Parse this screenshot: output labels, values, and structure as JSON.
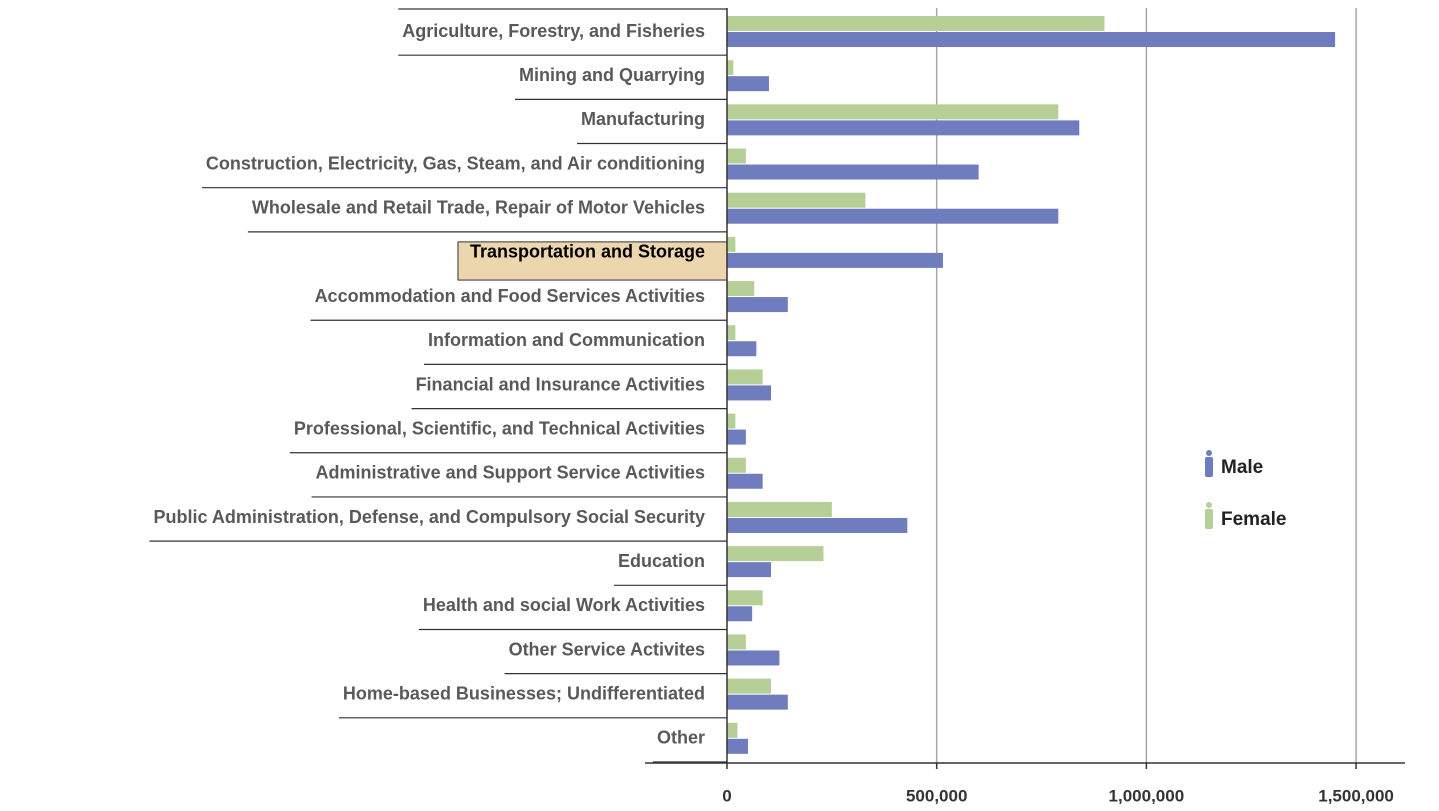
{
  "chart_data": {
    "type": "bar",
    "orientation": "horizontal",
    "categories": [
      "Agriculture, Forestry, and Fisheries",
      "Mining and Quarrying",
      "Manufacturing",
      "Construction, Electricity, Gas, Steam, and Air conditioning",
      "Wholesale and Retail Trade, Repair of Motor Vehicles",
      "Transportation and Storage",
      "Accommodation and Food Services Activities",
      "Information and Communication",
      "Financial and Insurance Activities",
      "Professional, Scientific, and Technical Activities",
      "Administrative and Support Service Activities",
      "Public Administration, Defense, and Compulsory Social Security",
      "Education",
      "Health and social Work Activities",
      "Other Service Activites",
      "Home-based Businesses; Undifferentiated",
      "Other"
    ],
    "series": [
      {
        "name": "Female",
        "color": "#b5cf97",
        "values": [
          900000,
          15000,
          790000,
          45000,
          330000,
          20000,
          65000,
          20000,
          85000,
          20000,
          45000,
          250000,
          230000,
          85000,
          45000,
          105000,
          25000
        ]
      },
      {
        "name": "Male",
        "color": "#6f7dbf",
        "values": [
          1450000,
          100000,
          840000,
          600000,
          790000,
          515000,
          145000,
          70000,
          105000,
          45000,
          85000,
          430000,
          105000,
          60000,
          125000,
          145000,
          50000
        ]
      }
    ],
    "xlim": [
      0,
      1600000
    ],
    "xticks": [
      0,
      {
        "value": 500000,
        "label": "500,000"
      },
      {
        "value": 1000000,
        "label": "1,000,000"
      },
      {
        "value": 1500000,
        "label": "1,500,000"
      }
    ],
    "grid": true,
    "highlighted_category": 5
  }
}
